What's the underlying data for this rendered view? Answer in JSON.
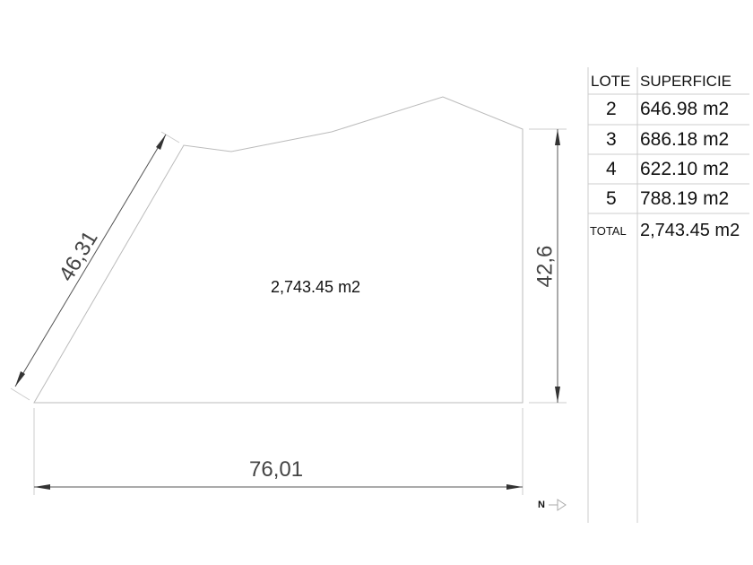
{
  "plan": {
    "area_label": "2,743.45 m2",
    "dim_bottom": "76,01",
    "dim_right": "42,6",
    "dim_left": "46,31",
    "north_label": "N"
  },
  "table": {
    "headers": [
      "LOTE",
      "SUPERFICIE"
    ],
    "rows": [
      {
        "lote": "2",
        "superficie": "646.98 m2"
      },
      {
        "lote": "3",
        "superficie": "686.18 m2"
      },
      {
        "lote": "4",
        "superficie": "622.10 m2"
      },
      {
        "lote": "5",
        "superficie": "788.19 m2"
      }
    ],
    "total_label": "TOTAL",
    "total_value": "2,743.45 m2"
  }
}
